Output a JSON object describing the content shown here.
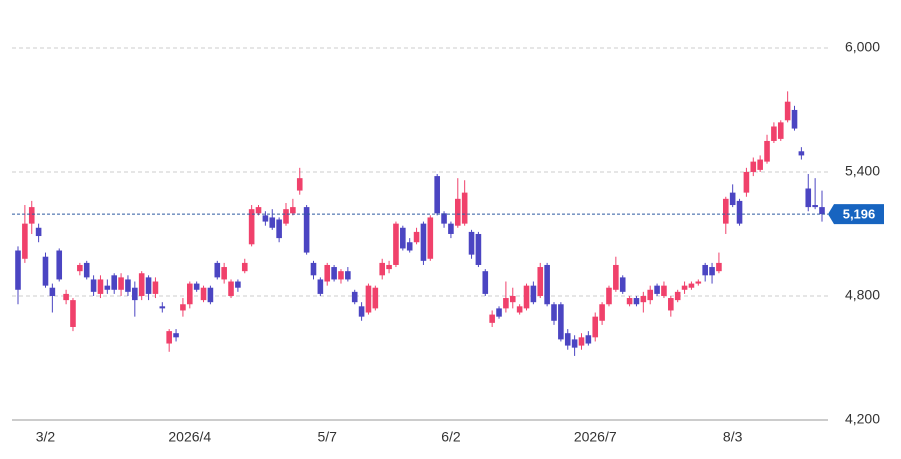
{
  "chart_data": {
    "type": "candlestick",
    "categories": [
      null,
      null,
      null,
      null,
      "3/2",
      null,
      null,
      null,
      null,
      null,
      null,
      null,
      null,
      null,
      null,
      null,
      null,
      null,
      null,
      null,
      null,
      null,
      null,
      null,
      null,
      "2026/4",
      null,
      null,
      null,
      null,
      null,
      null,
      null,
      null,
      null,
      null,
      null,
      null,
      null,
      null,
      null,
      null,
      null,
      null,
      null,
      "5/7",
      null,
      null,
      null,
      null,
      null,
      null,
      null,
      null,
      null,
      null,
      null,
      null,
      null,
      null,
      null,
      null,
      null,
      "6/2",
      null,
      null,
      null,
      null,
      null,
      null,
      null,
      null,
      null,
      null,
      null,
      null,
      null,
      null,
      null,
      null,
      null,
      null,
      null,
      null,
      "2026/7",
      null,
      null,
      null,
      null,
      null,
      null,
      null,
      null,
      null,
      null,
      null,
      null,
      null,
      null,
      null,
      null,
      null,
      null,
      null,
      "8/3",
      null,
      null,
      null,
      null,
      null,
      null,
      null,
      null,
      null,
      null,
      null,
      null,
      null
    ],
    "ohlc": [
      [
        5020,
        5040,
        4760,
        4830
      ],
      [
        4980,
        5240,
        4960,
        5150
      ],
      [
        5150,
        5260,
        5100,
        5230
      ],
      [
        5130,
        5150,
        5060,
        5090
      ],
      [
        4990,
        5010,
        4840,
        4850
      ],
      [
        4840,
        4860,
        4720,
        4800
      ],
      [
        5020,
        5030,
        4870,
        4880
      ],
      [
        4780,
        4830,
        4760,
        4810
      ],
      [
        4650,
        4790,
        4630,
        4780
      ],
      [
        4920,
        4960,
        4900,
        4950
      ],
      [
        4960,
        4970,
        4880,
        4890
      ],
      [
        4880,
        4900,
        4800,
        4820
      ],
      [
        4810,
        4900,
        4790,
        4880
      ],
      [
        4850,
        4880,
        4810,
        4830
      ],
      [
        4900,
        4910,
        4810,
        4830
      ],
      [
        4830,
        4910,
        4800,
        4890
      ],
      [
        4880,
        4900,
        4800,
        4820
      ],
      [
        4840,
        4870,
        4700,
        4780
      ],
      [
        4800,
        4920,
        4780,
        4910
      ],
      [
        4890,
        4900,
        4780,
        4810
      ],
      [
        4810,
        4890,
        4790,
        4870
      ],
      [
        4750,
        4770,
        4720,
        4740
      ],
      [
        4570,
        4640,
        4530,
        4630
      ],
      [
        4620,
        4640,
        4580,
        4600
      ],
      [
        4730,
        4790,
        4700,
        4760
      ],
      [
        4760,
        4870,
        4740,
        4860
      ],
      [
        4860,
        4870,
        4820,
        4830
      ],
      [
        4780,
        4850,
        4770,
        4840
      ],
      [
        4840,
        4850,
        4760,
        4770
      ],
      [
        4960,
        4970,
        4880,
        4890
      ],
      [
        4880,
        4960,
        4860,
        4940
      ],
      [
        4800,
        4880,
        4790,
        4870
      ],
      [
        4870,
        4880,
        4820,
        4840
      ],
      [
        4920,
        4980,
        4910,
        4960
      ],
      [
        5050,
        5240,
        5040,
        5220
      ],
      [
        5200,
        5240,
        5190,
        5230
      ],
      [
        5190,
        5210,
        5140,
        5160
      ],
      [
        5180,
        5220,
        5120,
        5130
      ],
      [
        5170,
        5180,
        5060,
        5080
      ],
      [
        5150,
        5250,
        5140,
        5220
      ],
      [
        5200,
        5270,
        5190,
        5230
      ],
      [
        5310,
        5420,
        5290,
        5370
      ],
      [
        5230,
        5240,
        5000,
        5010
      ],
      [
        4960,
        4970,
        4880,
        4900
      ],
      [
        4880,
        4890,
        4800,
        4810
      ],
      [
        4870,
        4960,
        4850,
        4950
      ],
      [
        4940,
        4950,
        4870,
        4880
      ],
      [
        4880,
        4930,
        4860,
        4920
      ],
      [
        4920,
        4940,
        4870,
        4880
      ],
      [
        4820,
        4830,
        4760,
        4770
      ],
      [
        4750,
        4770,
        4680,
        4700
      ],
      [
        4720,
        4860,
        4710,
        4850
      ],
      [
        4740,
        4850,
        4730,
        4840
      ],
      [
        4900,
        4980,
        4880,
        4960
      ],
      [
        4930,
        4970,
        4910,
        4950
      ],
      [
        4950,
        5160,
        4940,
        5150
      ],
      [
        5130,
        5140,
        5020,
        5030
      ],
      [
        5060,
        5080,
        5010,
        5020
      ],
      [
        5060,
        5130,
        5050,
        5110
      ],
      [
        5150,
        5160,
        4950,
        4970
      ],
      [
        4980,
        5190,
        4970,
        5180
      ],
      [
        5380,
        5390,
        5190,
        5200
      ],
      [
        5200,
        5210,
        5130,
        5150
      ],
      [
        5150,
        5160,
        5080,
        5100
      ],
      [
        5140,
        5370,
        5130,
        5270
      ],
      [
        5150,
        5360,
        5140,
        5300
      ],
      [
        5110,
        5120,
        4980,
        5000
      ],
      [
        5100,
        5110,
        4940,
        4950
      ],
      [
        4920,
        4930,
        4800,
        4810
      ],
      [
        4670,
        4730,
        4650,
        4710
      ],
      [
        4740,
        4750,
        4690,
        4700
      ],
      [
        4740,
        4870,
        4720,
        4790
      ],
      [
        4770,
        4840,
        4740,
        4800
      ],
      [
        4720,
        4760,
        4710,
        4750
      ],
      [
        4740,
        4860,
        4730,
        4850
      ],
      [
        4850,
        4870,
        4760,
        4770
      ],
      [
        4800,
        4960,
        4790,
        4940
      ],
      [
        4950,
        4960,
        4750,
        4760
      ],
      [
        4760,
        4770,
        4660,
        4680
      ],
      [
        4760,
        4770,
        4580,
        4590
      ],
      [
        4620,
        4640,
        4540,
        4560
      ],
      [
        4590,
        4610,
        4510,
        4550
      ],
      [
        4560,
        4620,
        4540,
        4600
      ],
      [
        4610,
        4630,
        4560,
        4570
      ],
      [
        4600,
        4720,
        4580,
        4700
      ],
      [
        4680,
        4770,
        4660,
        4760
      ],
      [
        4760,
        4850,
        4750,
        4840
      ],
      [
        4830,
        4990,
        4820,
        4950
      ],
      [
        4890,
        4900,
        4810,
        4820
      ],
      [
        4760,
        4800,
        4750,
        4790
      ],
      [
        4790,
        4800,
        4750,
        4760
      ],
      [
        4770,
        4820,
        4720,
        4800
      ],
      [
        4780,
        4850,
        4760,
        4830
      ],
      [
        4850,
        4860,
        4800,
        4810
      ],
      [
        4800,
        4870,
        4790,
        4850
      ],
      [
        4730,
        4800,
        4700,
        4790
      ],
      [
        4780,
        4830,
        4770,
        4820
      ],
      [
        4830,
        4870,
        4810,
        4850
      ],
      [
        4840,
        4870,
        4830,
        4860
      ],
      [
        4860,
        4880,
        4850,
        4870
      ],
      [
        4950,
        4960,
        4870,
        4900
      ],
      [
        4940,
        4960,
        4860,
        4900
      ],
      [
        4920,
        5010,
        4910,
        4960
      ],
      [
        5150,
        5280,
        5100,
        5270
      ],
      [
        5300,
        5340,
        5230,
        5240
      ],
      [
        5260,
        5270,
        5140,
        5150
      ],
      [
        5300,
        5420,
        5280,
        5400
      ],
      [
        5400,
        5470,
        5380,
        5450
      ],
      [
        5410,
        5480,
        5400,
        5460
      ],
      [
        5450,
        5580,
        5440,
        5550
      ],
      [
        5550,
        5640,
        5540,
        5620
      ],
      [
        5560,
        5650,
        5550,
        5640
      ],
      [
        5650,
        5790,
        5640,
        5740
      ],
      [
        5700,
        5720,
        5600,
        5610
      ],
      [
        5500,
        5520,
        5460,
        5480
      ],
      [
        5320,
        5390,
        5210,
        5230
      ],
      [
        5240,
        5370,
        5220,
        5230
      ],
      [
        5230,
        5310,
        5160,
        5196
      ]
    ],
    "up_color": "#f0416b",
    "down_color": "#4b45c2",
    "ylim": [
      4200,
      6100
    ],
    "yticks": [
      {
        "value": 4200,
        "label": "4,200"
      },
      {
        "value": 4800,
        "label": "4,800"
      },
      {
        "value": 5400,
        "label": "5,400"
      },
      {
        "value": 6000,
        "label": "6,000"
      }
    ],
    "grid": true,
    "last_price": {
      "value": 5196,
      "label": "5,196"
    }
  }
}
